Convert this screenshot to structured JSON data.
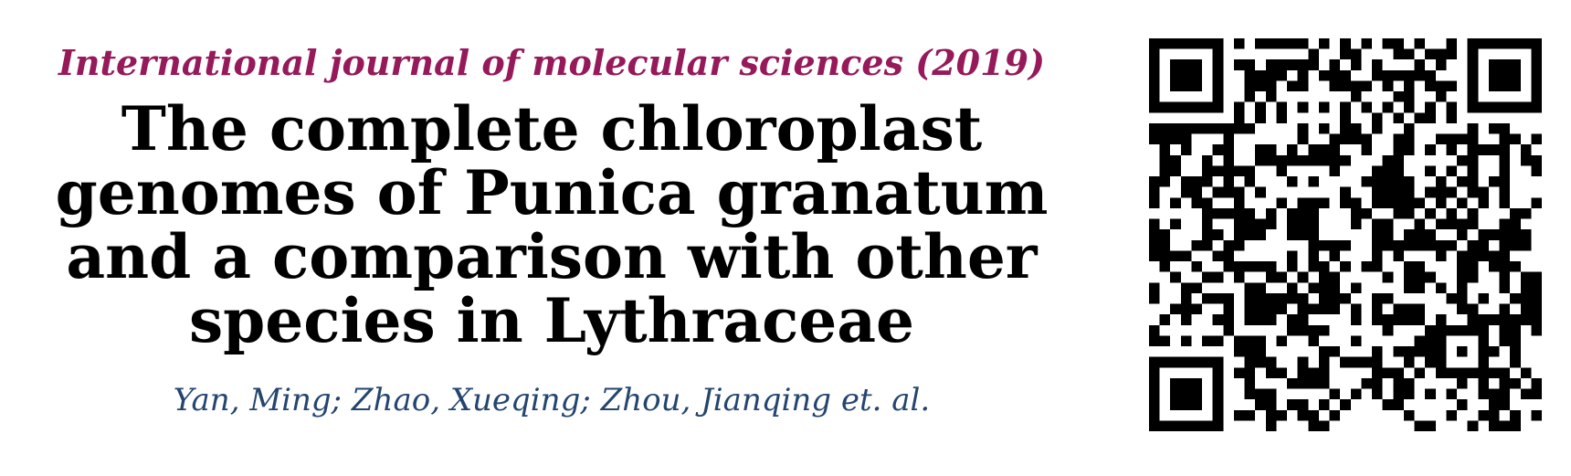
{
  "citation": {
    "journal": "International journal of molecular sciences (2019)",
    "title": "The complete chloroplast genomes of Punica granatum and a comparison with other species in Lythraceae",
    "authors": "Yan, Ming; Zhao, Xueqing; Zhou, Jianqing et. al."
  },
  "colors": {
    "journal": "#96195a",
    "title": "#000000",
    "authors": "#24456f"
  },
  "qr_code": {
    "icon": "qr-code-icon"
  }
}
